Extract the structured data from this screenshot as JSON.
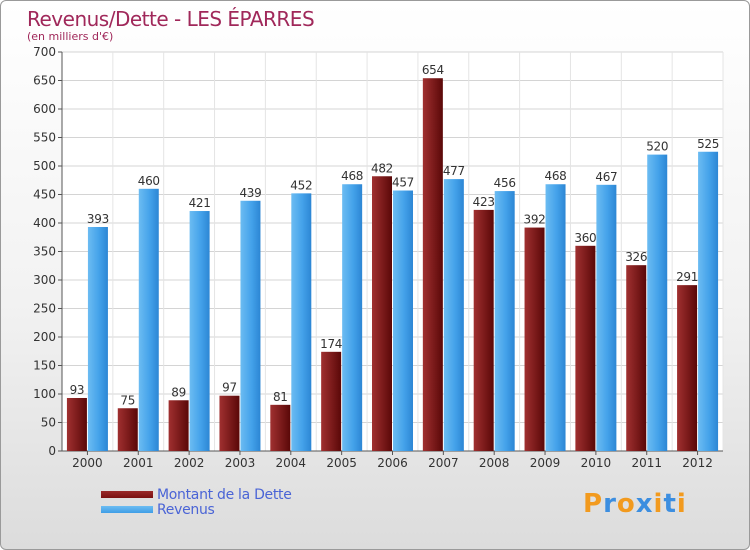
{
  "chart_data": {
    "type": "bar",
    "title": "Revenus/Dette - LES ÉPARRES",
    "subtitle": "(en milliers d'€)",
    "categories": [
      "2000",
      "2001",
      "2002",
      "2003",
      "2004",
      "2005",
      "2006",
      "2007",
      "2008",
      "2009",
      "2010",
      "2011",
      "2012"
    ],
    "series": [
      {
        "name": "Montant de la Dette",
        "color": "#7a1010",
        "values": [
          93,
          75,
          89,
          97,
          81,
          174,
          482,
          654,
          423,
          392,
          360,
          326,
          291
        ]
      },
      {
        "name": "Revenus",
        "color": "#3f9ee6",
        "values": [
          393,
          460,
          421,
          439,
          452,
          468,
          457,
          477,
          456,
          468,
          467,
          520,
          525
        ]
      }
    ],
    "yticks": [
      0,
      50,
      100,
      150,
      200,
      250,
      300,
      350,
      400,
      450,
      500,
      550,
      600,
      650,
      700
    ],
    "ylim": [
      0,
      700
    ],
    "xlabel": "",
    "ylabel": "",
    "grid": true,
    "legend": "bottom-left"
  },
  "logo": {
    "text": "Proxiti",
    "colors": [
      "#f29a1e",
      "#3c8ee0",
      "#f29a1e",
      "#3c8ee0",
      "#f29a1e",
      "#3c8ee0",
      "#f29a1e"
    ]
  }
}
